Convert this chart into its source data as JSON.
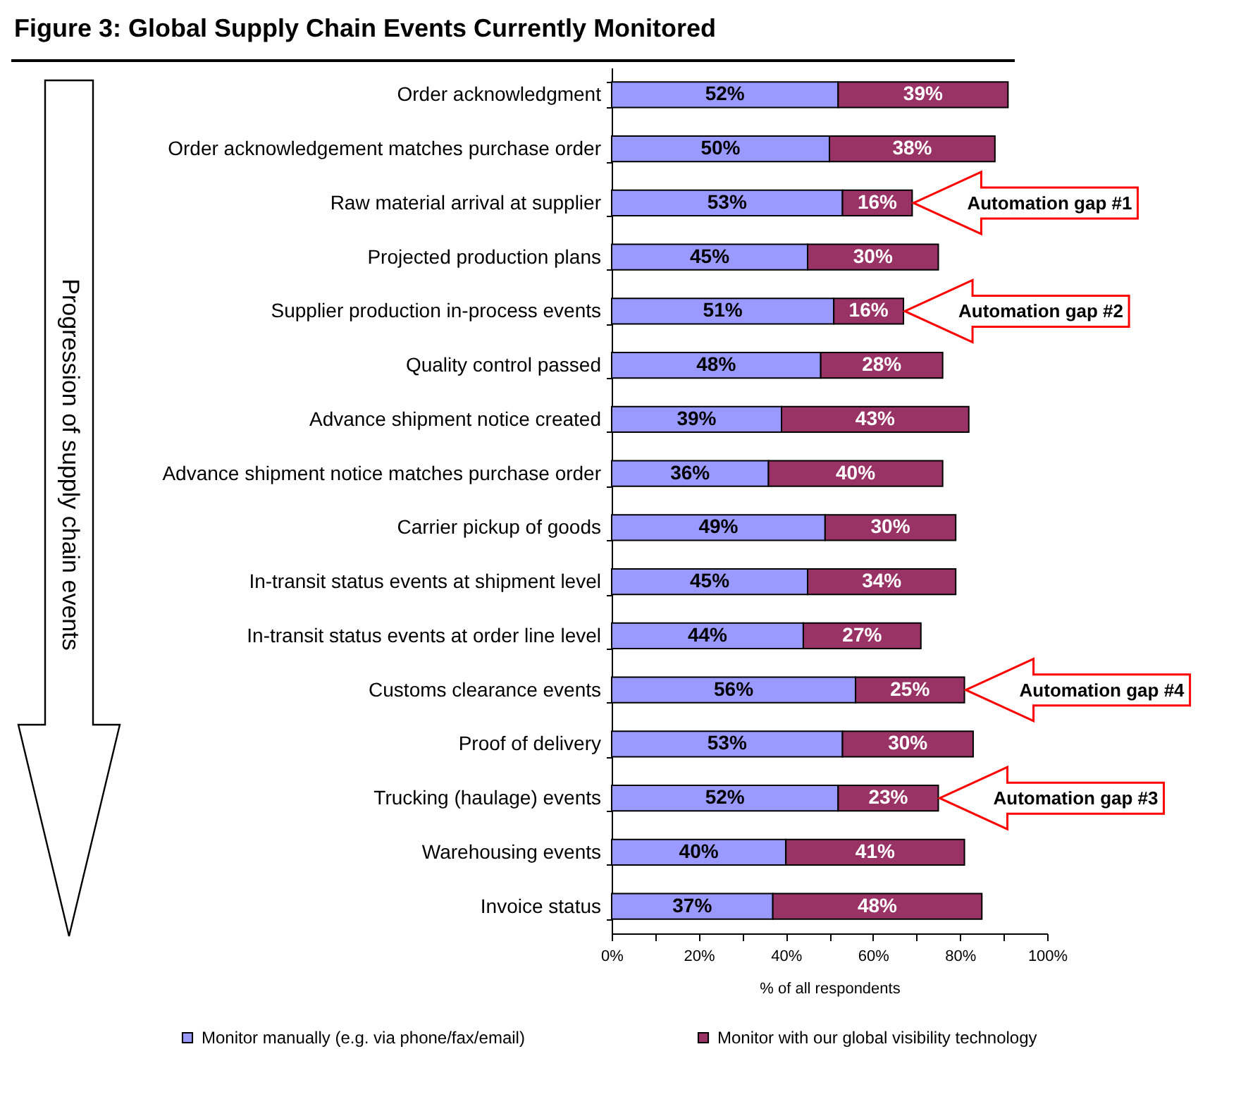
{
  "chart_data": {
    "type": "bar",
    "orientation": "horizontal",
    "stacked": true,
    "title": "Figure 3: Global Supply Chain Events Currently Monitored",
    "xlabel": "% of all respondents",
    "ylabel": "Progression of supply chain events",
    "categories": [
      "Order acknowledgment",
      "Order acknowledgement matches purchase order",
      "Raw material arrival at supplier",
      "Projected production plans",
      "Supplier production in-process events",
      "Quality control passed",
      "Advance shipment notice created",
      "Advance shipment notice matches purchase order",
      "Carrier pickup of goods",
      "In-transit status events at shipment level",
      "In-transit status events at order line level",
      "Customs clearance events",
      "Proof of delivery",
      "Trucking (haulage) events",
      "Warehousing events",
      "Invoice status"
    ],
    "series": [
      {
        "name": "Monitor manually (e.g. via phone/fax/email)",
        "color": "#9999ff",
        "values": [
          52,
          50,
          53,
          45,
          51,
          48,
          39,
          36,
          49,
          45,
          44,
          56,
          53,
          52,
          40,
          37
        ],
        "value_labels": [
          "52%",
          "50%",
          "53%",
          "45%",
          "51%",
          "48%",
          "39%",
          "36%",
          "49%",
          "45%",
          "44%",
          "56%",
          "53%",
          "52%",
          "40%",
          "37%"
        ]
      },
      {
        "name": "Monitor with our global visibility technology",
        "color": "#993366",
        "values": [
          39,
          38,
          16,
          30,
          16,
          28,
          43,
          40,
          30,
          34,
          27,
          25,
          30,
          23,
          41,
          48
        ],
        "value_labels": [
          "39%",
          "38%",
          "16%",
          "30%",
          "16%",
          "28%",
          "43%",
          "40%",
          "30%",
          "34%",
          "27%",
          "25%",
          "30%",
          "23%",
          "41%",
          "48%"
        ]
      }
    ],
    "xlim": [
      0,
      100
    ],
    "xticks": [
      {
        "value": 0,
        "label": "0%"
      },
      {
        "value": 10,
        "label": null
      },
      {
        "value": 20,
        "label": "20%"
      },
      {
        "value": 30,
        "label": null
      },
      {
        "value": 40,
        "label": "40%"
      },
      {
        "value": 50,
        "label": null
      },
      {
        "value": 60,
        "label": "60%"
      },
      {
        "value": 70,
        "label": null
      },
      {
        "value": 80,
        "label": "80%"
      },
      {
        "value": 90,
        "label": null
      },
      {
        "value": 100,
        "label": "100%"
      }
    ],
    "legend": "bottom",
    "annotations": [
      {
        "text": "Automation gap #1",
        "x": 69,
        "y": "Raw material arrival at supplier"
      },
      {
        "text": "Automation gap #2",
        "x": 67,
        "y": "Supplier production in-process events"
      },
      {
        "text": "Automation gap #4",
        "x": 81,
        "y": "Customs clearance events"
      },
      {
        "text": "Automation gap #3",
        "x": 75,
        "y": "Trucking (haulage) events"
      }
    ]
  }
}
